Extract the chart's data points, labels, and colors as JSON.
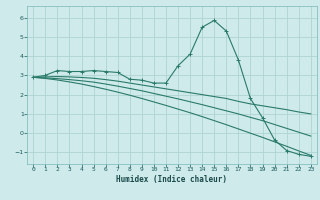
{
  "xlabel": "Humidex (Indice chaleur)",
  "bg_color": "#ceeaea",
  "grid_color": "#aed4d4",
  "line_color": "#2a7a6a",
  "xlim": [
    -0.5,
    23.5
  ],
  "ylim": [
    -1.6,
    6.6
  ],
  "xticks": [
    0,
    1,
    2,
    3,
    4,
    5,
    6,
    7,
    8,
    9,
    10,
    11,
    12,
    13,
    14,
    15,
    16,
    17,
    18,
    19,
    20,
    21,
    22,
    23
  ],
  "yticks": [
    -1,
    0,
    1,
    2,
    3,
    4,
    5,
    6
  ],
  "series": [
    {
      "x": [
        0,
        1,
        2,
        3,
        4,
        5,
        6,
        7,
        8,
        9,
        10,
        11,
        12,
        13,
        14,
        15,
        16,
        17,
        18,
        19,
        20,
        21,
        22,
        23
      ],
      "y": [
        2.9,
        3.0,
        3.25,
        3.2,
        3.2,
        3.25,
        3.2,
        3.15,
        2.8,
        2.75,
        2.6,
        2.6,
        3.5,
        4.1,
        5.5,
        5.85,
        5.3,
        3.8,
        1.8,
        0.8,
        -0.35,
        -0.9,
        -1.1,
        -1.2
      ],
      "marker": true
    },
    {
      "x": [
        0,
        1,
        2,
        3,
        4,
        5,
        6,
        7,
        8,
        9,
        10,
        11,
        12,
        13,
        14,
        15,
        16,
        17,
        18,
        19,
        20,
        21,
        22,
        23
      ],
      "y": [
        2.9,
        2.92,
        2.94,
        2.92,
        2.89,
        2.85,
        2.78,
        2.7,
        2.6,
        2.5,
        2.4,
        2.3,
        2.2,
        2.1,
        2.0,
        1.9,
        1.8,
        1.65,
        1.52,
        1.42,
        1.32,
        1.22,
        1.1,
        1.0
      ],
      "marker": false
    },
    {
      "x": [
        0,
        1,
        2,
        3,
        4,
        5,
        6,
        7,
        8,
        9,
        10,
        11,
        12,
        13,
        14,
        15,
        16,
        17,
        18,
        19,
        20,
        21,
        22,
        23
      ],
      "y": [
        2.9,
        2.87,
        2.83,
        2.78,
        2.72,
        2.65,
        2.55,
        2.44,
        2.32,
        2.2,
        2.06,
        1.92,
        1.78,
        1.63,
        1.48,
        1.32,
        1.16,
        1.0,
        0.82,
        0.65,
        0.45,
        0.25,
        0.05,
        -0.15
      ],
      "marker": false
    },
    {
      "x": [
        0,
        1,
        2,
        3,
        4,
        5,
        6,
        7,
        8,
        9,
        10,
        11,
        12,
        13,
        14,
        15,
        16,
        17,
        18,
        19,
        20,
        21,
        22,
        23
      ],
      "y": [
        2.9,
        2.84,
        2.76,
        2.66,
        2.55,
        2.42,
        2.28,
        2.13,
        1.97,
        1.8,
        1.62,
        1.44,
        1.25,
        1.06,
        0.86,
        0.65,
        0.44,
        0.22,
        0.0,
        -0.22,
        -0.45,
        -0.68,
        -0.92,
        -1.15
      ],
      "marker": false
    }
  ]
}
